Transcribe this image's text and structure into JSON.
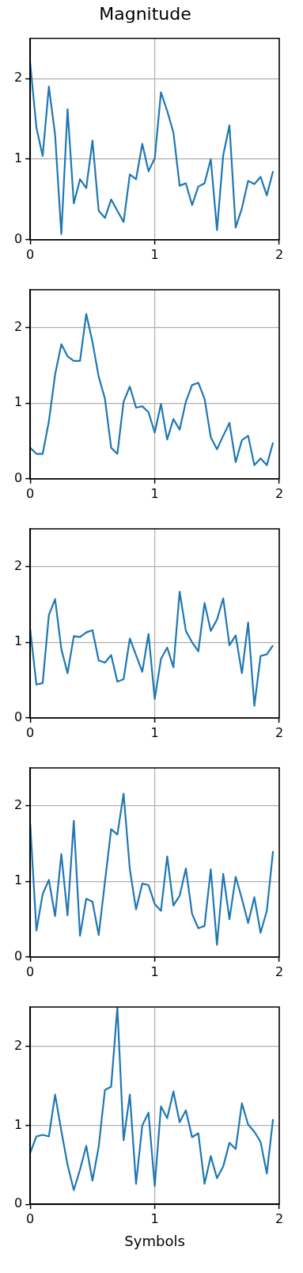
{
  "chart_data": [
    {
      "type": "line",
      "title": "Magnitude",
      "x": [
        0,
        0.05,
        0.1,
        0.15,
        0.2,
        0.25,
        0.3,
        0.35,
        0.4,
        0.45,
        0.5,
        0.55,
        0.6,
        0.65,
        0.7,
        0.75,
        0.8,
        0.85,
        0.9,
        0.95,
        1,
        1.05,
        1.1,
        1.15,
        1.2,
        1.25,
        1.3,
        1.35,
        1.4,
        1.45,
        1.5,
        1.55,
        1.6,
        1.65,
        1.7,
        1.75,
        1.8,
        1.85,
        1.9,
        1.95
      ],
      "series": [
        {
          "color": "#1f77b4",
          "values": [
            2.19,
            1.39,
            1.04,
            1.9,
            1.3,
            0.07,
            1.62,
            0.45,
            0.75,
            0.64,
            1.23,
            0.36,
            0.27,
            0.5,
            0.36,
            0.22,
            0.81,
            0.75,
            1.19,
            0.85,
            1.01,
            1.83,
            1.6,
            1.33,
            0.67,
            0.7,
            0.43,
            0.66,
            0.7,
            1.0,
            0.12,
            1.05,
            1.42,
            0.15,
            0.39,
            0.73,
            0.69,
            0.78,
            0.55,
            0.85
          ]
        }
      ],
      "xlim": [
        0,
        2
      ],
      "xticks": [
        0,
        1,
        2
      ],
      "ylim": [
        0,
        2.5
      ],
      "yticks": [
        0,
        1,
        2
      ],
      "grid": true
    },
    {
      "type": "line",
      "x": [
        0,
        0.05,
        0.1,
        0.15,
        0.2,
        0.25,
        0.3,
        0.35,
        0.4,
        0.45,
        0.5,
        0.55,
        0.6,
        0.65,
        0.7,
        0.75,
        0.8,
        0.85,
        0.9,
        0.95,
        1,
        1.05,
        1.1,
        1.15,
        1.2,
        1.25,
        1.3,
        1.35,
        1.4,
        1.45,
        1.5,
        1.55,
        1.6,
        1.65,
        1.7,
        1.75,
        1.8,
        1.85,
        1.9,
        1.95
      ],
      "series": [
        {
          "color": "#1f77b4",
          "values": [
            0.41,
            0.33,
            0.33,
            0.76,
            1.38,
            1.78,
            1.62,
            1.56,
            1.56,
            2.18,
            1.81,
            1.35,
            1.06,
            0.41,
            0.33,
            1.02,
            1.22,
            0.94,
            0.96,
            0.88,
            0.61,
            0.99,
            0.52,
            0.79,
            0.65,
            1.02,
            1.24,
            1.27,
            1.06,
            0.55,
            0.39,
            0.57,
            0.74,
            0.22,
            0.51,
            0.57,
            0.18,
            0.27,
            0.18,
            0.48
          ]
        }
      ],
      "xlim": [
        0,
        2
      ],
      "xticks": [
        0,
        1,
        2
      ],
      "ylim": [
        0,
        2.5
      ],
      "yticks": [
        0,
        1,
        2
      ],
      "grid": true
    },
    {
      "type": "line",
      "x": [
        0,
        0.05,
        0.1,
        0.15,
        0.2,
        0.25,
        0.3,
        0.35,
        0.4,
        0.45,
        0.5,
        0.55,
        0.6,
        0.65,
        0.7,
        0.75,
        0.8,
        0.85,
        0.9,
        0.95,
        1,
        1.05,
        1.1,
        1.15,
        1.2,
        1.25,
        1.3,
        1.35,
        1.4,
        1.45,
        1.5,
        1.55,
        1.6,
        1.65,
        1.7,
        1.75,
        1.8,
        1.85,
        1.9,
        1.95
      ],
      "series": [
        {
          "color": "#1f77b4",
          "values": [
            1.17,
            0.44,
            0.46,
            1.36,
            1.57,
            0.91,
            0.59,
            1.08,
            1.07,
            1.13,
            1.16,
            0.76,
            0.73,
            0.83,
            0.48,
            0.51,
            1.05,
            0.83,
            0.61,
            1.11,
            0.25,
            0.78,
            0.93,
            0.67,
            1.67,
            1.15,
            1.0,
            0.88,
            1.52,
            1.15,
            1.3,
            1.58,
            0.96,
            1.09,
            0.59,
            1.26,
            0.16,
            0.82,
            0.84,
            0.96
          ]
        }
      ],
      "xlim": [
        0,
        2
      ],
      "xticks": [
        0,
        1,
        2
      ],
      "ylim": [
        0,
        2.5
      ],
      "yticks": [
        0,
        1,
        2
      ],
      "grid": true
    },
    {
      "type": "line",
      "x": [
        0,
        0.05,
        0.1,
        0.15,
        0.2,
        0.25,
        0.3,
        0.35,
        0.4,
        0.45,
        0.5,
        0.55,
        0.6,
        0.65,
        0.7,
        0.75,
        0.8,
        0.85,
        0.9,
        0.95,
        1,
        1.05,
        1.1,
        1.15,
        1.2,
        1.25,
        1.3,
        1.35,
        1.4,
        1.45,
        1.5,
        1.55,
        1.6,
        1.65,
        1.7,
        1.75,
        1.8,
        1.85,
        1.9,
        1.95
      ],
      "series": [
        {
          "color": "#1f77b4",
          "values": [
            1.76,
            0.35,
            0.83,
            1.02,
            0.54,
            1.36,
            0.55,
            1.8,
            0.28,
            0.77,
            0.73,
            0.29,
            0.99,
            1.69,
            1.62,
            2.16,
            1.16,
            0.63,
            0.97,
            0.95,
            0.7,
            0.61,
            1.33,
            0.68,
            0.81,
            1.17,
            0.57,
            0.38,
            0.41,
            1.16,
            0.16,
            1.1,
            0.5,
            1.06,
            0.77,
            0.45,
            0.79,
            0.32,
            0.61,
            1.4
          ]
        }
      ],
      "xlim": [
        0,
        2
      ],
      "xticks": [
        0,
        1,
        2
      ],
      "ylim": [
        0,
        2.5
      ],
      "yticks": [
        0,
        1,
        2
      ],
      "grid": true
    },
    {
      "type": "line",
      "xlabel": "Symbols",
      "x": [
        0,
        0.05,
        0.1,
        0.15,
        0.2,
        0.25,
        0.3,
        0.35,
        0.4,
        0.45,
        0.5,
        0.55,
        0.6,
        0.65,
        0.7,
        0.75,
        0.8,
        0.85,
        0.9,
        0.95,
        1,
        1.05,
        1.1,
        1.15,
        1.2,
        1.25,
        1.3,
        1.35,
        1.4,
        1.45,
        1.5,
        1.55,
        1.6,
        1.65,
        1.7,
        1.75,
        1.8,
        1.85,
        1.9,
        1.95
      ],
      "series": [
        {
          "color": "#1f77b4",
          "values": [
            0.65,
            0.86,
            0.88,
            0.86,
            1.39,
            0.93,
            0.5,
            0.18,
            0.44,
            0.74,
            0.3,
            0.73,
            1.45,
            1.49,
            2.5,
            0.81,
            1.39,
            0.26,
            1.0,
            1.16,
            0.23,
            1.24,
            1.09,
            1.43,
            1.04,
            1.19,
            0.85,
            0.9,
            0.26,
            0.61,
            0.33,
            0.48,
            0.78,
            0.7,
            1.28,
            1.01,
            0.92,
            0.79,
            0.39,
            1.08
          ]
        }
      ],
      "xlim": [
        0,
        2
      ],
      "xticks": [
        0,
        1,
        2
      ],
      "ylim": [
        0,
        2.5
      ],
      "yticks": [
        0,
        1,
        2
      ],
      "grid": true
    }
  ]
}
